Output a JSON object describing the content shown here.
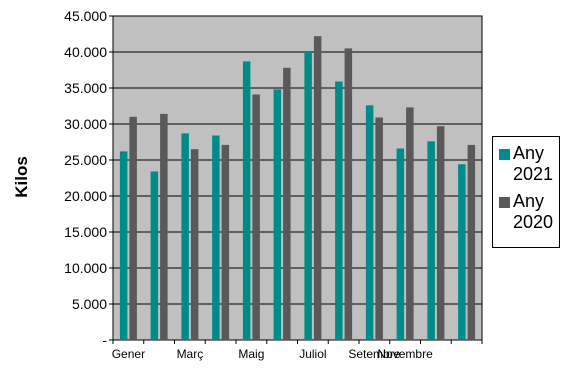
{
  "chart_data": {
    "type": "bar",
    "ylabel": "Kilos",
    "xlabel": "",
    "title": "",
    "ylim": [
      0,
      45000
    ],
    "ytick_values": [
      0,
      5000,
      10000,
      15000,
      20000,
      25000,
      30000,
      35000,
      40000,
      45000
    ],
    "ytick_labels": [
      "-",
      "5.000",
      "10.000",
      "15.000",
      "20.000",
      "25.000",
      "30.000",
      "35.000",
      "40.000",
      "45.000"
    ],
    "x_tick_labels": [
      "Gener",
      "",
      "Març",
      "",
      "Maig",
      "",
      "Juliol",
      "",
      "Setembre",
      "Novembre",
      "",
      ""
    ],
    "categories_count": 12,
    "grid": true,
    "legend_position": "right",
    "plot_background": "#c0c0c0",
    "series": [
      {
        "name": "Any 2021",
        "color": "#008b8b",
        "values": [
          26200,
          23400,
          28700,
          28400,
          38700,
          34800,
          40000,
          35900,
          32600,
          26600,
          27600,
          24400
        ]
      },
      {
        "name": "Any 2020",
        "color": "#595959",
        "values": [
          31000,
          31400,
          26500,
          27100,
          34100,
          37800,
          42200,
          40500,
          30900,
          32300,
          29700,
          27100
        ]
      }
    ]
  }
}
